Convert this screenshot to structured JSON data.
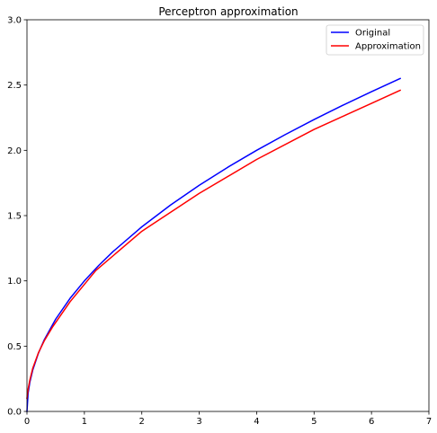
{
  "chart_data": {
    "type": "line",
    "title": "Perceptron approximation",
    "xlabel": "",
    "ylabel": "",
    "xlim": [
      0,
      7
    ],
    "ylim": [
      0.0,
      3.0
    ],
    "xticks": [
      0,
      1,
      2,
      3,
      4,
      5,
      6,
      7
    ],
    "xtick_labels": [
      "0",
      "1",
      "2",
      "3",
      "4",
      "5",
      "6",
      "7"
    ],
    "yticks": [
      0.0,
      0.5,
      1.0,
      1.5,
      2.0,
      2.5,
      3.0
    ],
    "ytick_labels": [
      "0.0",
      "0.5",
      "1.0",
      "1.5",
      "2.0",
      "2.5",
      "3.0"
    ],
    "grid": false,
    "legend_position": "top-right",
    "series": [
      {
        "name": "Original",
        "color": "#0000ff",
        "x": [
          0,
          0.02,
          0.05,
          0.1,
          0.2,
          0.3,
          0.5,
          0.75,
          1.0,
          1.25,
          1.5,
          2.0,
          2.5,
          3.0,
          3.5,
          4.0,
          4.5,
          5.0,
          5.5,
          6.0,
          6.5
        ],
        "y": [
          0,
          0.141,
          0.224,
          0.316,
          0.447,
          0.548,
          0.707,
          0.866,
          1.0,
          1.118,
          1.225,
          1.414,
          1.581,
          1.732,
          1.871,
          2.0,
          2.121,
          2.236,
          2.345,
          2.449,
          2.55
        ]
      },
      {
        "name": "Approximation",
        "color": "#ff0000",
        "x": [
          0,
          0.02,
          0.05,
          0.1,
          0.2,
          0.3,
          0.45,
          0.75,
          1.2,
          2.0,
          3.0,
          4.0,
          5.0,
          6.0,
          6.5
        ],
        "y": [
          0.1,
          0.17,
          0.24,
          0.33,
          0.45,
          0.54,
          0.65,
          0.84,
          1.08,
          1.38,
          1.67,
          1.93,
          2.16,
          2.36,
          2.46
        ]
      }
    ]
  }
}
